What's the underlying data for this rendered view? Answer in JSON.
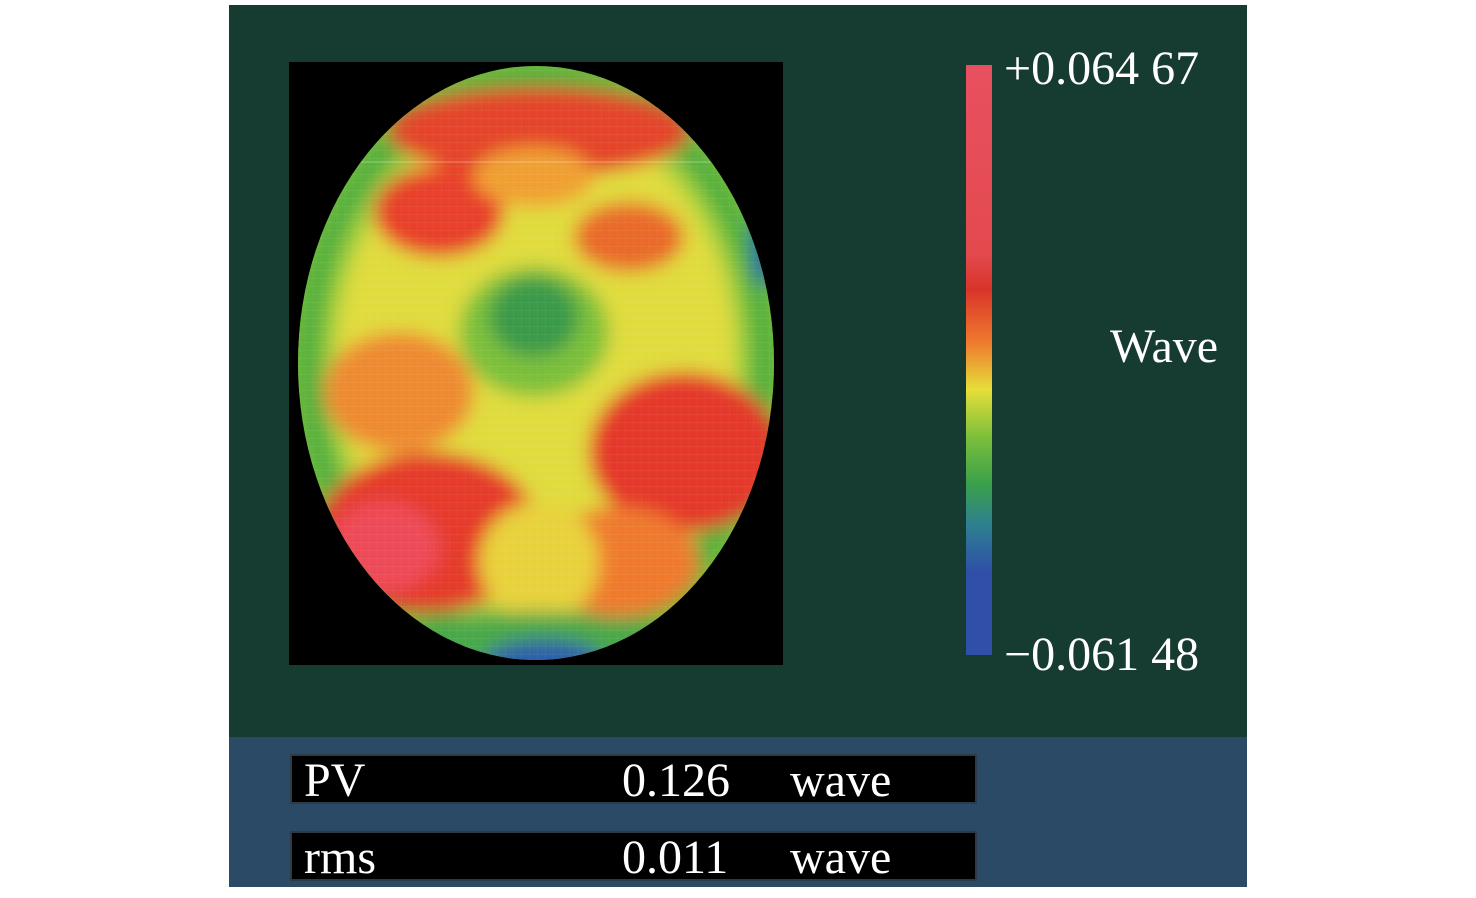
{
  "colors": {
    "background": "#163b30",
    "stats_panel": "#2b4a66",
    "map_background": "#000000",
    "colormap": [
      "#2f4fa8",
      "#2e7fa0",
      "#3aa04a",
      "#7cc03a",
      "#e8e040",
      "#f0a030",
      "#e43a2a",
      "#e85060"
    ]
  },
  "heatmap": {
    "icon": "wavefront-map",
    "scale_max_label": "+0.064 67",
    "scale_min_label": "−0.061 48",
    "unit_label": "Wave",
    "scale_max": 0.06467,
    "scale_min": -0.06148
  },
  "stats": [
    {
      "label": "PV",
      "value": "0.126",
      "unit": "wave"
    },
    {
      "label": "rms",
      "value": "0.011",
      "unit": "wave"
    }
  ]
}
